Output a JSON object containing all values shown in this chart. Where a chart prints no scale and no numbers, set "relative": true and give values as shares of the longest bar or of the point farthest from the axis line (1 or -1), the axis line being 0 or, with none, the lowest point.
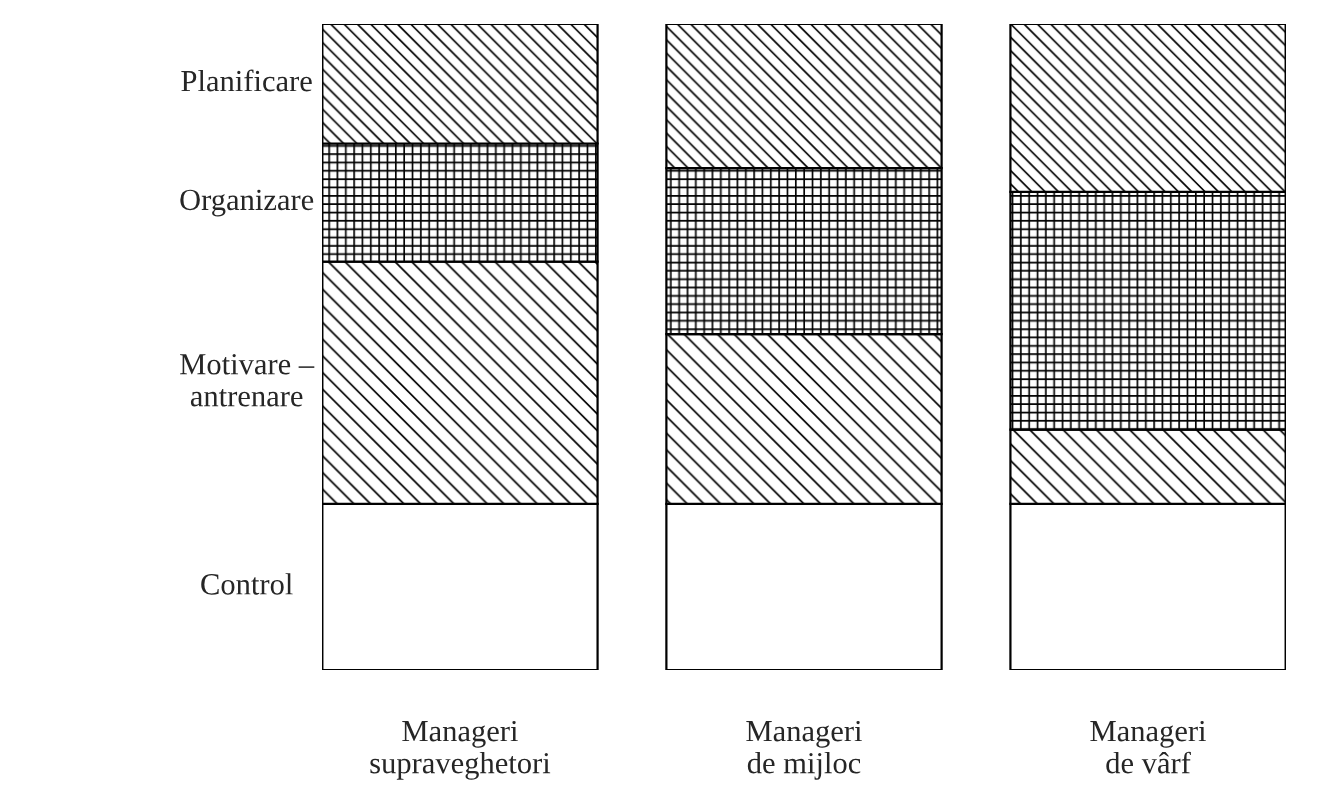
{
  "chart_data": {
    "type": "bar",
    "stacked": true,
    "relative": true,
    "legend": false,
    "categories": [
      "Manageri\nsupraveghetori",
      "Manageri\nde mijloc",
      "Manageri\nde vârf"
    ],
    "series": [
      {
        "name": "Control",
        "color": "#ffffff",
        "values": [
          0.257,
          0.257,
          0.257
        ]
      },
      {
        "name": "Motivare –\nantrenare",
        "color": "#000000",
        "values": [
          0.375,
          0.263,
          0.115
        ]
      },
      {
        "name": "Organizare",
        "color": "#000000",
        "values": [
          0.183,
          0.257,
          0.368
        ]
      },
      {
        "name": "Planificare",
        "color": "#000000",
        "values": [
          0.185,
          0.223,
          0.26
        ]
      }
    ]
  }
}
